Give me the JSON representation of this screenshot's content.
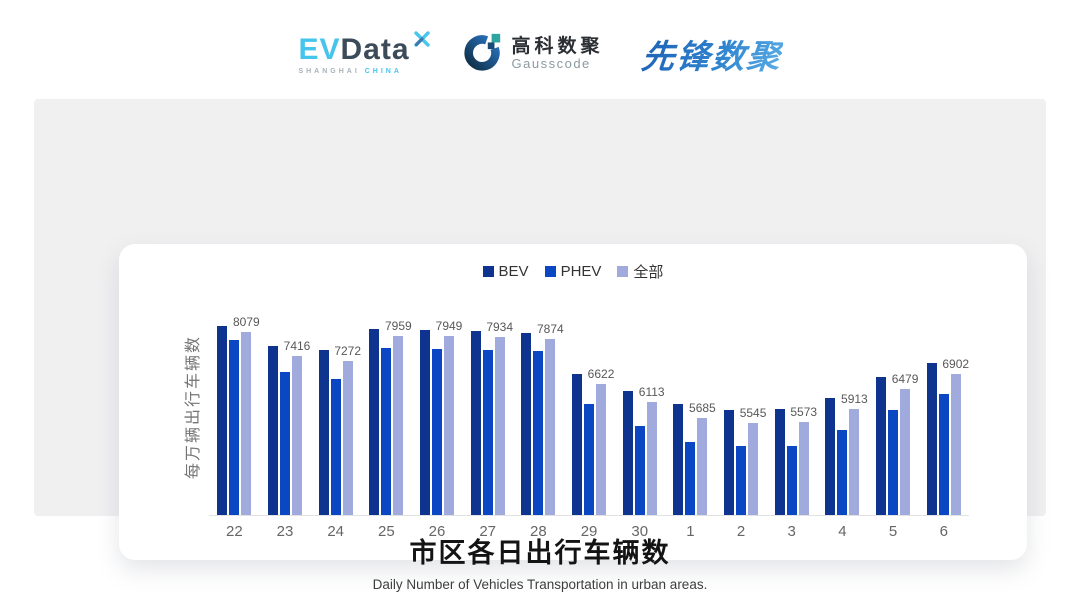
{
  "header": {
    "evdata": {
      "ev": "EV",
      "data": "Data",
      "sub_left": "SHANGHAI",
      "sub_right": "CHINA"
    },
    "gausscode": {
      "cn": "高科数聚",
      "en": "Gausscode"
    },
    "xianfeng": {
      "text": "先锋数聚"
    }
  },
  "colors": {
    "bev": "#0E3490",
    "phev": "#0B46C3",
    "all": "#A0AADC",
    "evdata_cyan": "#45C4EC",
    "evdata_slate": "#3C4B59",
    "gausscode_teal": "#2FA5A0",
    "xianfeng_blue": "#2B74C8"
  },
  "chart_data": {
    "type": "bar",
    "title": "市区各日出行车辆数",
    "subtitle": "Daily Number of Vehicles Transportation in urban areas.",
    "ylabel": "每万辆出行车辆数",
    "xlabel": "",
    "categories": [
      "22",
      "23",
      "24",
      "25",
      "26",
      "27",
      "28",
      "29",
      "30",
      "1",
      "2",
      "3",
      "4",
      "5",
      "6"
    ],
    "series": [
      {
        "name": "BEV",
        "color": "#0E3490",
        "values": [
          8240,
          7680,
          7580,
          8160,
          8130,
          8100,
          8040,
          6900,
          6430,
          6060,
          5900,
          5930,
          6240,
          6810,
          7220
        ]
      },
      {
        "name": "PHEV",
        "color": "#0B46C3",
        "values": [
          7850,
          6950,
          6760,
          7630,
          7610,
          7570,
          7530,
          6060,
          5460,
          4990,
          4890,
          4890,
          5340,
          5910,
          6350
        ]
      },
      {
        "name": "全部",
        "color": "#A0AADC",
        "values": [
          8079,
          7416,
          7272,
          7959,
          7949,
          7934,
          7874,
          6622,
          6113,
          5685,
          5545,
          5573,
          5913,
          6479,
          6902
        ]
      }
    ],
    "data_labels_series": "全部",
    "data_labels": [
      8079,
      7416,
      7272,
      7959,
      7949,
      7934,
      7874,
      6622,
      6113,
      5685,
      5545,
      5573,
      5913,
      6479,
      6902
    ],
    "ylim": [
      2965,
      9020
    ],
    "grid": false,
    "legend_position": "top"
  }
}
